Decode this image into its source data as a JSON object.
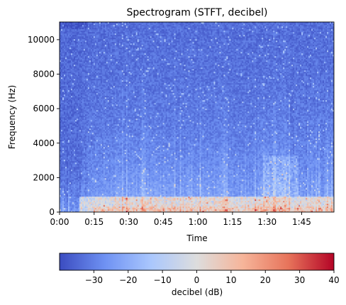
{
  "chart_data": {
    "type": "heatmap",
    "title": "Spectrogram (STFT, decibel)",
    "xlabel": "Time",
    "ylabel": "Frequency (Hz)",
    "x_ticks": [
      "0:00",
      "0:15",
      "0:30",
      "0:45",
      "1:00",
      "1:15",
      "1:30",
      "1:45"
    ],
    "x_tick_seconds": [
      0,
      15,
      30,
      45,
      60,
      75,
      90,
      105
    ],
    "xlim_seconds": [
      0,
      119
    ],
    "y_ticks": [
      0,
      2000,
      4000,
      6000,
      8000,
      10000
    ],
    "ylim": [
      0,
      11025
    ],
    "colorbar": {
      "label": "decibel (dB)",
      "orientation": "horizontal",
      "ticks": [
        -30,
        -20,
        -10,
        0,
        10,
        20,
        30,
        40
      ],
      "range": [
        -40,
        40
      ],
      "colormap": [
        "#3b4cc0",
        "#6f92f3",
        "#aac7fd",
        "#dddddd",
        "#f6b59a",
        "#e7745b",
        "#b40426"
      ]
    },
    "grid": false,
    "legend": "none"
  }
}
